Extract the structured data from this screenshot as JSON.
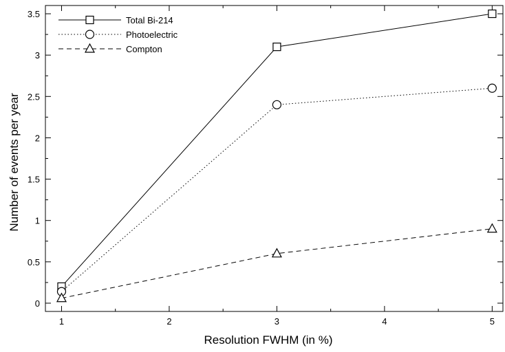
{
  "chart_data": {
    "type": "line",
    "xlabel": "Resolution FWHM (in %)",
    "ylabel": "Number of events per year",
    "xlim": [
      0.85,
      5.1
    ],
    "ylim": [
      -0.1,
      3.6
    ],
    "xticks": [
      1,
      2,
      3,
      4,
      5
    ],
    "yticks": [
      0,
      0.5,
      1,
      1.5,
      2,
      2.5,
      3,
      3.5
    ],
    "xtick_labels": [
      "1",
      "2",
      "3",
      "4",
      "5"
    ],
    "ytick_labels": [
      "0",
      "0.5",
      "1",
      "1.5",
      "2",
      "2.5",
      "3",
      "3.5"
    ],
    "grid": false,
    "legend_position": "top-left",
    "series": [
      {
        "name": "Total Bi-214",
        "x": [
          1,
          3,
          5
        ],
        "y": [
          0.2,
          3.1,
          3.5
        ],
        "marker": "square",
        "line_style": "solid"
      },
      {
        "name": "Photoelectric",
        "x": [
          1,
          3,
          5
        ],
        "y": [
          0.14,
          2.4,
          2.6
        ],
        "marker": "circle",
        "line_style": "dotted"
      },
      {
        "name": "Compton",
        "x": [
          1,
          3,
          5
        ],
        "y": [
          0.06,
          0.6,
          0.9
        ],
        "marker": "triangle",
        "line_style": "dashed"
      }
    ]
  }
}
